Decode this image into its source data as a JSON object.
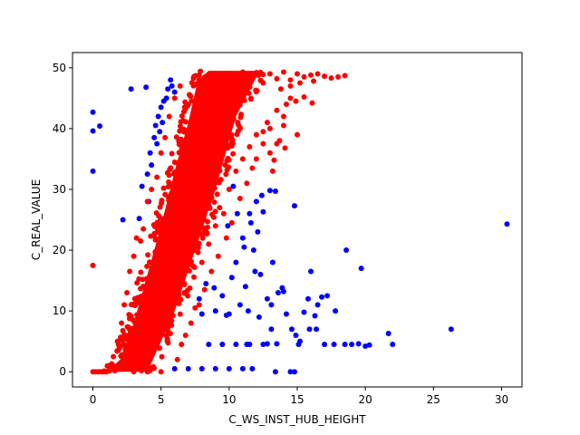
{
  "chart_data": {
    "type": "scatter",
    "title": "",
    "xlabel": "C_WS_INST_HUB_HEIGHT",
    "ylabel": "C_REAL_VALUE",
    "xlim": [
      -1.5,
      31.5
    ],
    "ylim": [
      -2.5,
      52.5
    ],
    "xticks": [
      0,
      5,
      10,
      15,
      20,
      25,
      30
    ],
    "yticks": [
      0,
      10,
      20,
      30,
      40,
      50
    ],
    "grid": false,
    "legend": "none",
    "series": [
      {
        "color": "#0000ff",
        "points": [
          [
            0.0,
            42.7
          ],
          [
            0.0,
            39.6
          ],
          [
            0.5,
            40.4
          ],
          [
            0.0,
            33.0
          ],
          [
            2.8,
            46.5
          ],
          [
            3.9,
            46.8
          ],
          [
            2.2,
            25.0
          ],
          [
            3.4,
            25.2
          ],
          [
            4.0,
            32.5
          ],
          [
            4.2,
            36.0
          ],
          [
            4.5,
            38.5
          ],
          [
            4.6,
            40.5
          ],
          [
            4.8,
            42.0
          ],
          [
            5.0,
            43.5
          ],
          [
            5.2,
            44.5
          ],
          [
            5.5,
            46.5
          ],
          [
            5.7,
            48.0
          ],
          [
            4.3,
            34.0
          ],
          [
            4.7,
            37.5
          ],
          [
            5.1,
            41.0
          ],
          [
            5.4,
            45.0
          ],
          [
            6.0,
            46.0
          ],
          [
            5.8,
            47.0
          ],
          [
            4.1,
            28.0
          ],
          [
            3.6,
            30.5
          ],
          [
            4.9,
            39.5
          ],
          [
            10.3,
            30.5
          ],
          [
            11.0,
            22.0
          ],
          [
            11.5,
            26.0
          ],
          [
            12.0,
            28.0
          ],
          [
            12.4,
            29.0
          ],
          [
            13.0,
            29.8
          ],
          [
            13.4,
            29.7
          ],
          [
            14.8,
            27.3
          ],
          [
            10.5,
            18.0
          ],
          [
            11.2,
            14.0
          ],
          [
            11.8,
            20.0
          ],
          [
            12.3,
            16.0
          ],
          [
            12.8,
            12.0
          ],
          [
            13.2,
            18.0
          ],
          [
            13.6,
            13.0
          ],
          [
            13.9,
            13.8
          ],
          [
            10.0,
            9.5
          ],
          [
            10.8,
            11.0
          ],
          [
            11.4,
            10.0
          ],
          [
            12.2,
            9.0
          ],
          [
            13.1,
            11.0
          ],
          [
            9.9,
            24.0
          ],
          [
            10.6,
            26.0
          ],
          [
            11.6,
            24.5
          ],
          [
            12.5,
            26.3
          ],
          [
            12.1,
            23.0
          ],
          [
            11.1,
            20.5
          ],
          [
            10.2,
            15.5
          ],
          [
            9.5,
            12.5
          ],
          [
            11.9,
            16.5
          ],
          [
            14.0,
            13.2
          ],
          [
            14.2,
            9.5
          ],
          [
            14.9,
            6.0
          ],
          [
            15.5,
            9.8
          ],
          [
            15.8,
            12.0
          ],
          [
            16.0,
            16.5
          ],
          [
            16.3,
            9.2
          ],
          [
            16.5,
            11.0
          ],
          [
            16.8,
            12.3
          ],
          [
            17.2,
            12.5
          ],
          [
            17.8,
            10.0
          ],
          [
            18.6,
            20.0
          ],
          [
            19.7,
            17.0
          ],
          [
            15.2,
            5.0
          ],
          [
            15.9,
            7.0
          ],
          [
            16.4,
            7.0
          ],
          [
            17.0,
            4.5
          ],
          [
            17.7,
            4.5
          ],
          [
            18.5,
            4.5
          ],
          [
            19.0,
            4.5
          ],
          [
            19.5,
            4.6
          ],
          [
            20.0,
            4.2
          ],
          [
            20.3,
            4.4
          ],
          [
            21.7,
            6.3
          ],
          [
            22.0,
            4.5
          ],
          [
            26.3,
            7.0
          ],
          [
            30.4,
            24.3
          ],
          [
            13.1,
            7.0
          ],
          [
            14.6,
            7.0
          ],
          [
            15.1,
            4.5
          ],
          [
            13.4,
            0.0
          ],
          [
            14.5,
            0.0
          ],
          [
            14.8,
            0.0
          ],
          [
            6.0,
            0.5
          ],
          [
            7.0,
            0.5
          ],
          [
            8.0,
            0.5
          ],
          [
            9.0,
            0.5
          ],
          [
            10.0,
            0.5
          ],
          [
            11.0,
            0.5
          ],
          [
            11.7,
            0.5
          ],
          [
            8.5,
            4.5
          ],
          [
            9.5,
            4.5
          ],
          [
            10.5,
            4.5
          ],
          [
            11.5,
            4.5
          ],
          [
            12.5,
            4.5
          ],
          [
            8.0,
            9.5
          ],
          [
            9.0,
            10.0
          ],
          [
            9.8,
            9.3
          ],
          [
            8.3,
            14.5
          ],
          [
            8.9,
            13.8
          ],
          [
            7.8,
            12.0
          ],
          [
            11.3,
            4.5
          ],
          [
            12.8,
            4.6
          ],
          [
            13.5,
            4.6
          ]
        ]
      },
      {
        "color": "#ff0000",
        "band": {
          "lower": [
            [
              1.5,
              0
            ],
            [
              4.0,
              0
            ],
            [
              6.0,
              10
            ],
            [
              7.5,
              20
            ],
            [
              9.0,
              30
            ],
            [
              10.5,
              42
            ],
            [
              12.0,
              48.5
            ]
          ],
          "upper": [
            [
              0.0,
              0
            ],
            [
              1.0,
              0
            ],
            [
              2.0,
              2
            ],
            [
              3.0,
              8
            ],
            [
              4.0,
              16
            ],
            [
              5.0,
              24
            ],
            [
              6.0,
              33
            ],
            [
              7.0,
              41
            ],
            [
              7.7,
              48
            ],
            [
              8.5,
              49.5
            ]
          ],
          "top": 49.5
        },
        "points": [
          [
            0.0,
            17.5
          ],
          [
            2.5,
            13.0
          ],
          [
            2.7,
            16.5
          ],
          [
            3.0,
            19.0
          ],
          [
            3.2,
            22.0
          ],
          [
            3.5,
            21.5
          ],
          [
            3.7,
            23.5
          ],
          [
            4.0,
            28.0
          ],
          [
            4.3,
            30.0
          ],
          [
            4.7,
            32.0
          ],
          [
            5.0,
            36.0
          ],
          [
            5.3,
            38.5
          ],
          [
            5.6,
            42.0
          ],
          [
            6.0,
            45.0
          ],
          [
            6.4,
            47.0
          ],
          [
            2.1,
            8.0
          ],
          [
            2.3,
            11.0
          ],
          [
            1.8,
            5.0
          ],
          [
            1.5,
            2.5
          ],
          [
            1.2,
            1.0
          ],
          [
            0.8,
            0.0
          ],
          [
            0.4,
            0.0
          ],
          [
            0.0,
            0.0
          ],
          [
            0.2,
            0.0
          ],
          [
            0.6,
            0.0
          ],
          [
            1.0,
            0.0
          ],
          [
            3.0,
            0.0
          ],
          [
            4.0,
            0.0
          ],
          [
            5.0,
            0.0
          ],
          [
            8.0,
            18.0
          ],
          [
            8.5,
            21.0
          ],
          [
            9.0,
            24.0
          ],
          [
            9.3,
            27.0
          ],
          [
            9.6,
            26.0
          ],
          [
            10.0,
            30.0
          ],
          [
            10.5,
            33.0
          ],
          [
            11.0,
            35.0
          ],
          [
            11.5,
            37.0
          ],
          [
            12.0,
            39.0
          ],
          [
            12.5,
            39.5
          ],
          [
            13.0,
            40.0
          ],
          [
            13.7,
            38.0
          ],
          [
            13.0,
            36.0
          ],
          [
            12.5,
            37.5
          ],
          [
            12.0,
            35.0
          ],
          [
            11.7,
            33.5
          ],
          [
            11.3,
            31.0
          ],
          [
            10.8,
            28.5
          ],
          [
            10.2,
            24.5
          ],
          [
            9.8,
            22.0
          ],
          [
            9.2,
            19.0
          ],
          [
            8.7,
            16.5
          ],
          [
            8.2,
            13.5
          ],
          [
            7.8,
            11.0
          ],
          [
            7.5,
            10.5
          ],
          [
            7.2,
            8.0
          ],
          [
            6.8,
            6.0
          ],
          [
            6.5,
            4.5
          ],
          [
            6.2,
            2.0
          ],
          [
            13.2,
            33.0
          ],
          [
            13.5,
            37.5
          ],
          [
            14.0,
            42.0
          ],
          [
            14.2,
            44.0
          ],
          [
            14.5,
            45.0
          ],
          [
            14.9,
            44.5
          ],
          [
            15.5,
            45.2
          ],
          [
            16.1,
            44.2
          ],
          [
            13.3,
            34.8
          ],
          [
            14.1,
            36.8
          ],
          [
            14.0,
            40.5
          ],
          [
            15.0,
            39.0
          ],
          [
            12.8,
            41.0
          ],
          [
            13.5,
            43.0
          ],
          [
            13.8,
            46.5
          ],
          [
            14.5,
            47.0
          ],
          [
            10.0,
            49.0
          ],
          [
            11.0,
            49.3
          ],
          [
            12.0,
            49.2
          ],
          [
            13.0,
            49.0
          ],
          [
            14.0,
            49.3
          ],
          [
            15.0,
            49.0
          ],
          [
            15.5,
            48.5
          ],
          [
            16.0,
            48.8
          ],
          [
            16.5,
            49.0
          ],
          [
            17.0,
            48.6
          ],
          [
            17.5,
            48.3
          ],
          [
            18.0,
            48.5
          ],
          [
            18.5,
            48.7
          ],
          [
            12.5,
            47.5
          ],
          [
            13.5,
            48.2
          ],
          [
            14.5,
            48.0
          ],
          [
            15.2,
            47.5
          ],
          [
            16.2,
            47.8
          ]
        ]
      }
    ]
  }
}
